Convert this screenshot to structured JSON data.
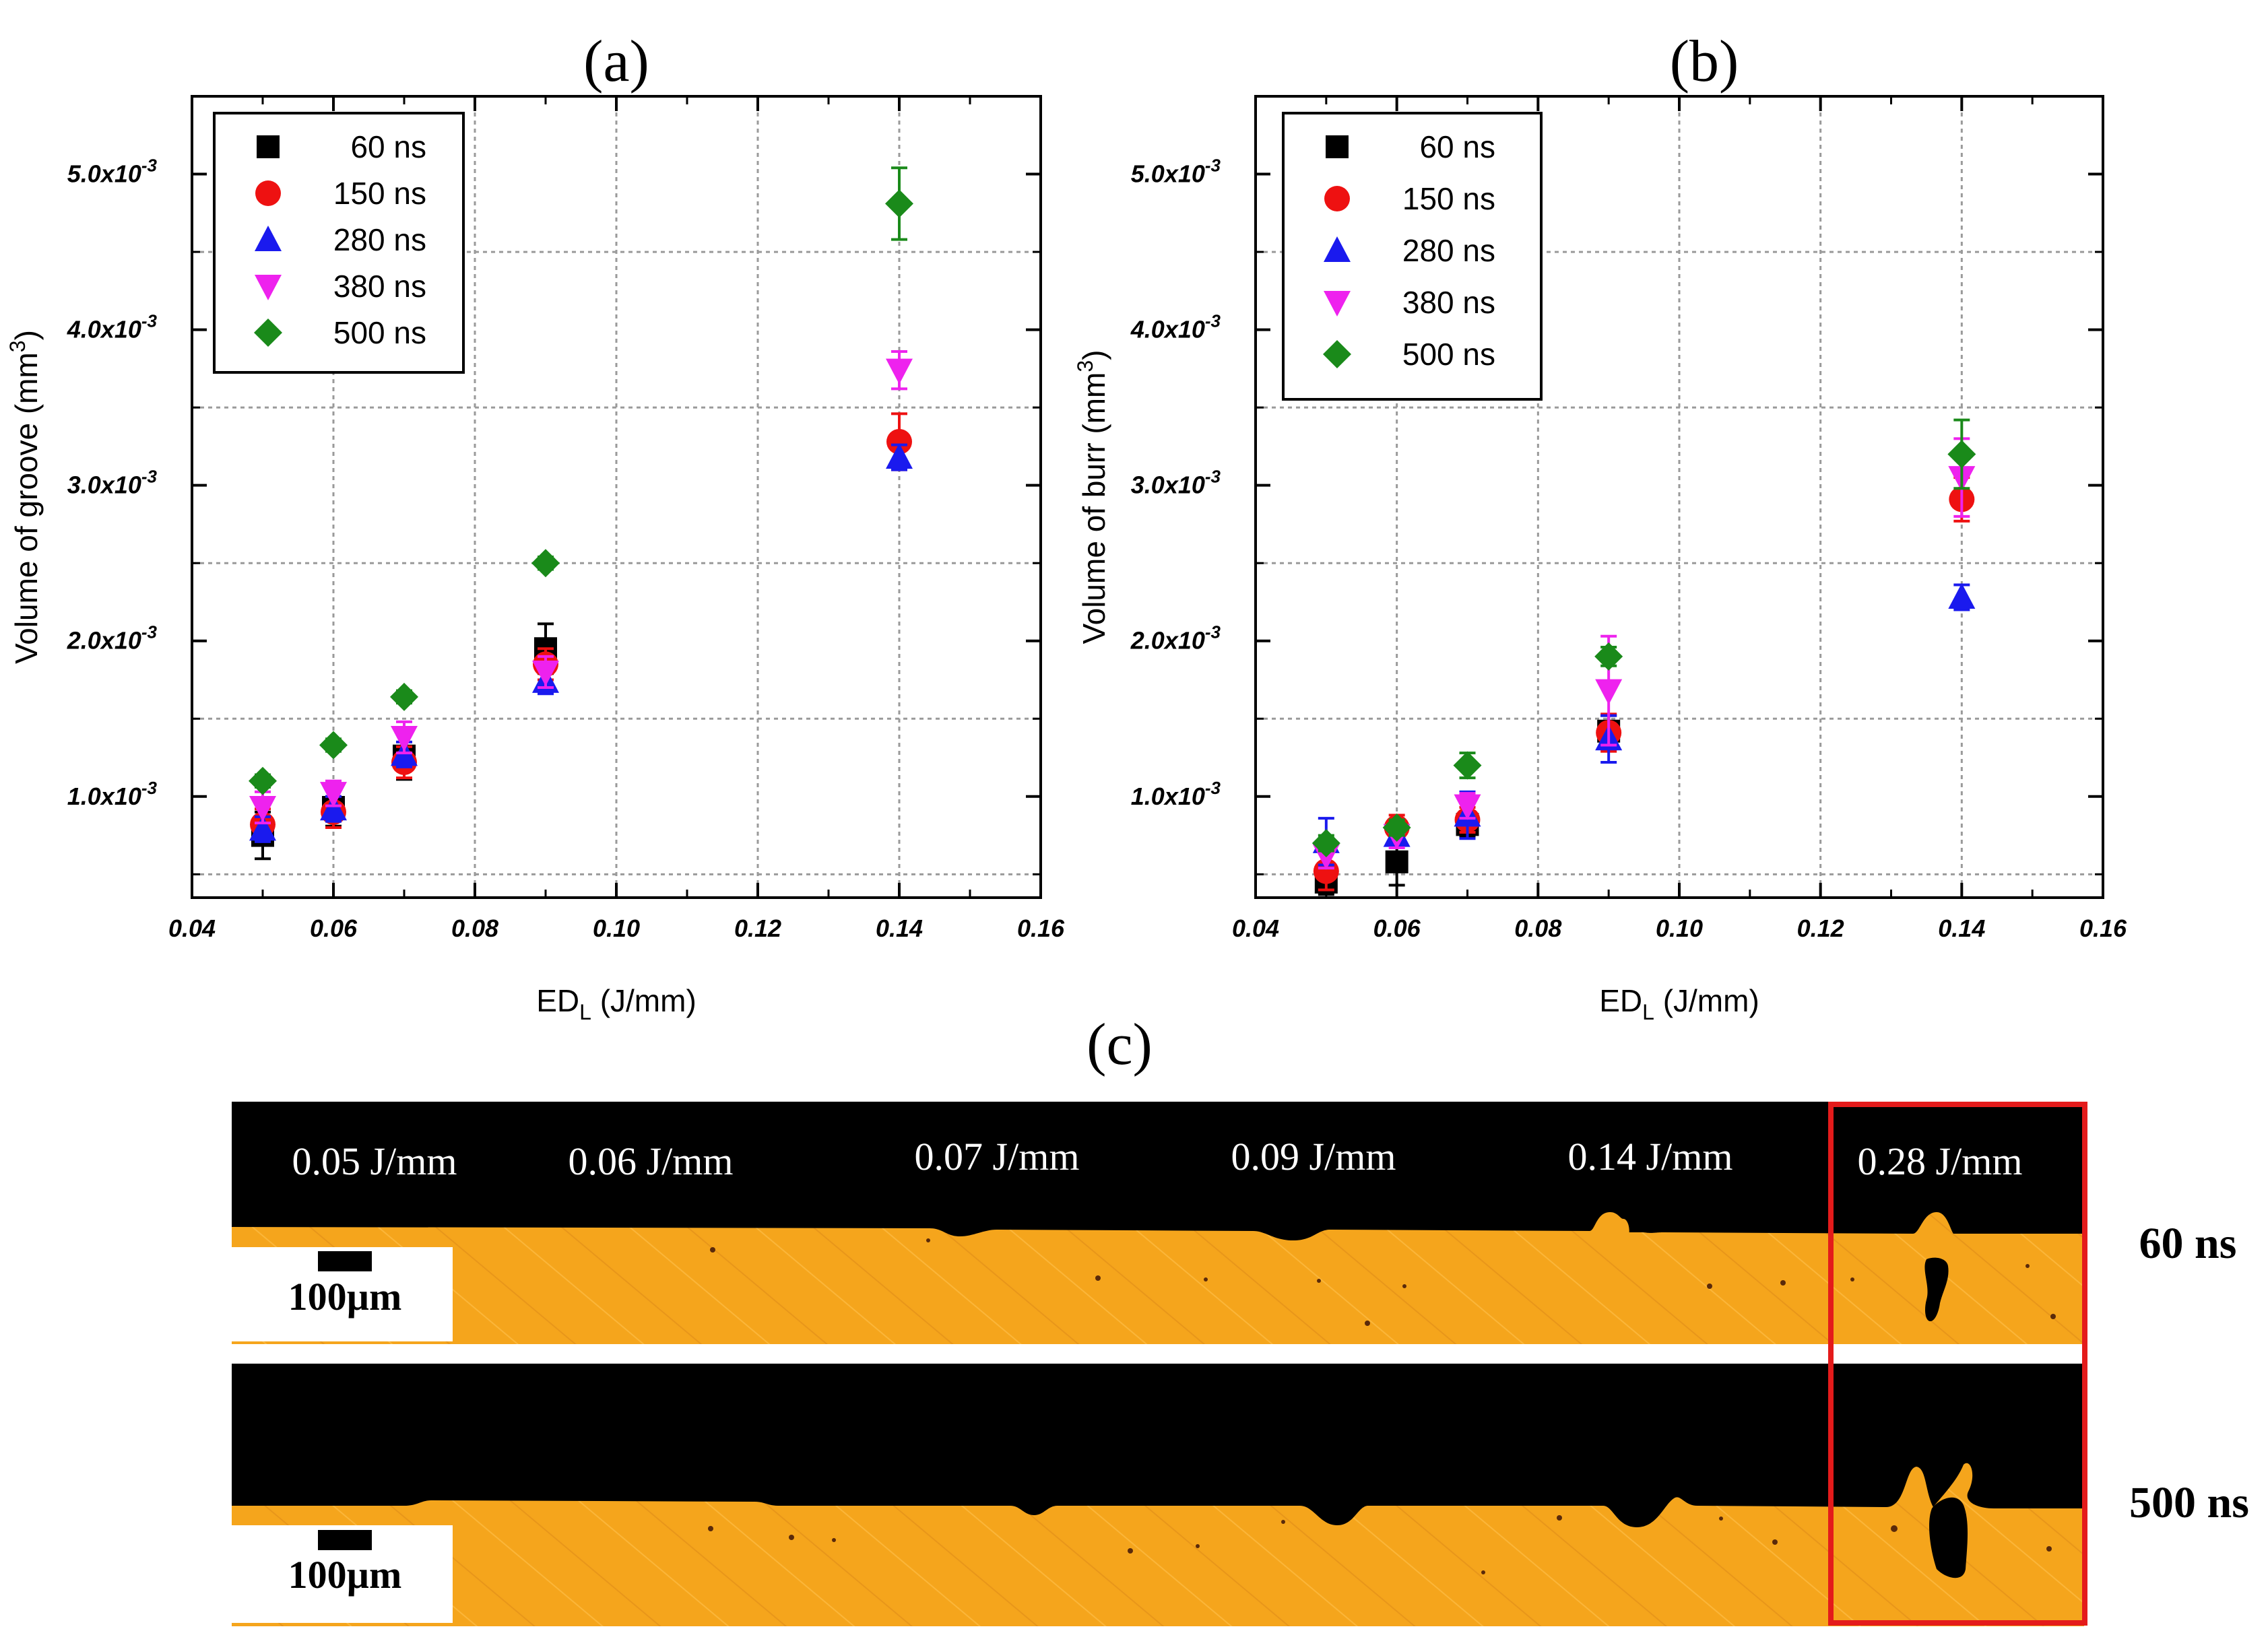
{
  "figure": {
    "panel_c_label": "(c)",
    "micrographs": {
      "energy_labels": [
        "0.05 J/mm",
        "0.06 J/mm",
        "0.07 J/mm",
        "0.09 J/mm",
        "0.14 J/mm",
        "0.28 J/mm"
      ],
      "rows": [
        {
          "label": "60 ns",
          "scale_bar": "100µm"
        },
        {
          "label": "500 ns",
          "scale_bar": "100µm"
        }
      ],
      "colors": {
        "metal": "#f5a51c",
        "background": "#000000",
        "highlight_box": "#e41b1b"
      }
    }
  },
  "chart_data": [
    {
      "type": "scatter",
      "panel_label": "(a)",
      "title": "",
      "xlabel_main": "ED",
      "xlabel_sub": "L",
      "xlabel_unit": " (J/mm)",
      "ylabel": "Volume of groove (mm",
      "ylabel_sup": "3",
      "ylabel_end": ")",
      "xlim": [
        0.04,
        0.16
      ],
      "ylim": [
        0.00035,
        0.0055
      ],
      "xticks": [
        0.04,
        0.06,
        0.08,
        0.1,
        0.12,
        0.14,
        0.16
      ],
      "xtick_labels": [
        "0.04",
        "0.06",
        "0.08",
        "0.10",
        "0.12",
        "0.14",
        "0.16"
      ],
      "yticks": [
        0.001,
        0.002,
        0.003,
        0.004,
        0.005
      ],
      "ytick_mantissa": [
        "1.0x10",
        "2.0x10",
        "3.0x10",
        "4.0x10",
        "5.0x10"
      ],
      "ytick_exp": "-3",
      "grid_x": [
        0.06,
        0.08,
        0.1,
        0.12,
        0.14
      ],
      "grid_y": [
        0.0005,
        0.0015,
        0.0025,
        0.0035,
        0.0045
      ],
      "legend_position": "top-left",
      "series": [
        {
          "name": "60 ns",
          "marker": "square",
          "color": "#000000",
          "x": [
            0.05,
            0.06,
            0.07,
            0.09
          ],
          "y": [
            0.00075,
            0.00093,
            0.00126,
            0.00195
          ],
          "err": [
            0.00015,
            0.00012,
            0.00015,
            0.00016
          ]
        },
        {
          "name": "150 ns",
          "marker": "circle",
          "color": "#ee1111",
          "x": [
            0.05,
            0.06,
            0.07,
            0.09,
            0.14
          ],
          "y": [
            0.00082,
            0.0009,
            0.00122,
            0.00185,
            0.00328
          ],
          "err": [
            0.0001,
            0.0001,
            0.0001,
            0.0001,
            0.00018
          ]
        },
        {
          "name": "280 ns",
          "marker": "triangle-up",
          "color": "#1a1aee",
          "x": [
            0.05,
            0.06,
            0.07,
            0.09,
            0.14
          ],
          "y": [
            0.00079,
            0.00092,
            0.00127,
            0.00174,
            0.00318
          ],
          "err": [
            8e-05,
            8e-05,
            8e-05,
            8e-05,
            8e-05
          ]
        },
        {
          "name": "380 ns",
          "marker": "triangle-down",
          "color": "#ee22ee",
          "x": [
            0.05,
            0.06,
            0.07,
            0.09,
            0.14
          ],
          "y": [
            0.00093,
            0.00102,
            0.00138,
            0.0018,
            0.00374
          ],
          "err": [
            0.0001,
            8e-05,
            0.0001,
            0.0001,
            0.00012
          ]
        },
        {
          "name": "500 ns",
          "marker": "diamond",
          "color": "#1a8a1a",
          "x": [
            0.05,
            0.06,
            0.07,
            0.09,
            0.14
          ],
          "y": [
            0.0011,
            0.00133,
            0.00164,
            0.0025,
            0.00481
          ],
          "err": [
            4e-05,
            4e-05,
            4e-05,
            4e-05,
            0.00023
          ]
        }
      ]
    },
    {
      "type": "scatter",
      "panel_label": "(b)",
      "title": "",
      "xlabel_main": "ED",
      "xlabel_sub": "L",
      "xlabel_unit": " (J/mm)",
      "ylabel": "Volume of burr (mm",
      "ylabel_sup": "3",
      "ylabel_end": ")",
      "xlim": [
        0.04,
        0.16
      ],
      "ylim": [
        0.00035,
        0.0055
      ],
      "xticks": [
        0.04,
        0.06,
        0.08,
        0.1,
        0.12,
        0.14,
        0.16
      ],
      "xtick_labels": [
        "0.04",
        "0.06",
        "0.08",
        "0.10",
        "0.12",
        "0.14",
        "0.16"
      ],
      "yticks": [
        0.001,
        0.002,
        0.003,
        0.004,
        0.005
      ],
      "ytick_mantissa": [
        "1.0x10",
        "2.0x10",
        "3.0x10",
        "4.0x10",
        "5.0x10"
      ],
      "ytick_exp": "-3",
      "grid_x": [
        0.06,
        0.08,
        0.1,
        0.12,
        0.14
      ],
      "grid_y": [
        0.0005,
        0.0015,
        0.0025,
        0.0035,
        0.0045
      ],
      "legend_position": "top-left",
      "series": [
        {
          "name": "60 ns",
          "marker": "square",
          "color": "#000000",
          "x": [
            0.05,
            0.06,
            0.07,
            0.09
          ],
          "y": [
            0.00045,
            0.00058,
            0.00082,
            0.00142
          ],
          "err": [
            8e-05,
            0.00015,
            8e-05,
            0.0001
          ]
        },
        {
          "name": "150 ns",
          "marker": "circle",
          "color": "#ee1111",
          "x": [
            0.05,
            0.06,
            0.07,
            0.09,
            0.14
          ],
          "y": [
            0.00052,
            0.0008,
            0.00085,
            0.00141,
            0.00291
          ],
          "err": [
            0.00012,
            8e-05,
            8e-05,
            0.00012,
            0.00014
          ]
        },
        {
          "name": "280 ns",
          "marker": "triangle-up",
          "color": "#1a1aee",
          "x": [
            0.05,
            0.06,
            0.07,
            0.09,
            0.14
          ],
          "y": [
            0.00071,
            0.00075,
            0.00088,
            0.00137,
            0.00228
          ],
          "err": [
            0.00015,
            6e-05,
            0.00015,
            0.00015,
            8e-05
          ]
        },
        {
          "name": "380 ns",
          "marker": "triangle-down",
          "color": "#ee22ee",
          "x": [
            0.05,
            0.06,
            0.07,
            0.09,
            0.14
          ],
          "y": [
            0.00062,
            0.00075,
            0.00094,
            0.00168,
            0.00305
          ],
          "err": [
            8e-05,
            8e-05,
            8e-05,
            0.00035,
            0.00025
          ]
        },
        {
          "name": "500 ns",
          "marker": "diamond",
          "color": "#1a8a1a",
          "x": [
            0.05,
            0.06,
            0.07,
            0.09,
            0.14
          ],
          "y": [
            0.0007,
            0.0008,
            0.0012,
            0.0019,
            0.0032
          ],
          "err": [
            5e-05,
            5e-05,
            8e-05,
            6e-05,
            0.00022
          ]
        }
      ]
    }
  ]
}
